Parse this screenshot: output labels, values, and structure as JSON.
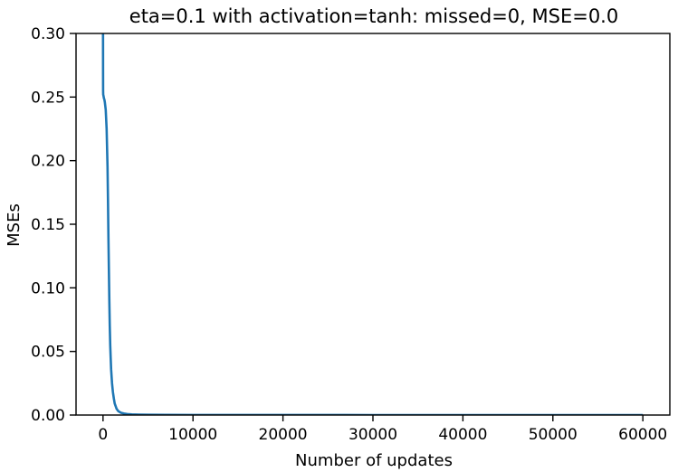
{
  "chart_data": {
    "type": "line",
    "title": "eta=0.1 with activation=tanh: missed=0, MSE=0.0",
    "xlabel": "Number of updates",
    "ylabel": "MSEs",
    "xlim": [
      -3000,
      63000
    ],
    "ylim": [
      0,
      0.3
    ],
    "x_ticks": [
      0,
      10000,
      20000,
      30000,
      40000,
      50000,
      60000
    ],
    "x_tick_labels": [
      "0",
      "10000",
      "20000",
      "30000",
      "40000",
      "50000",
      "60000"
    ],
    "y_ticks": [
      0.0,
      0.05,
      0.1,
      0.15,
      0.2,
      0.25,
      0.3
    ],
    "y_tick_labels": [
      "0.00",
      "0.05",
      "0.10",
      "0.15",
      "0.20",
      "0.25",
      "0.30"
    ],
    "grid": false,
    "legend": "none",
    "series": [
      {
        "color": "#1f77b4",
        "x": [
          0,
          5,
          10,
          20,
          50,
          100,
          150,
          200,
          300,
          400,
          500,
          550,
          600,
          650,
          700,
          750,
          800,
          850,
          900,
          1000,
          1100,
          1200,
          1300,
          1500,
          1700,
          2000,
          2300,
          2700,
          3200,
          4000,
          5000,
          7000,
          10000,
          20000,
          30000,
          40000,
          50000,
          60000
        ],
        "y": [
          0.3,
          0.27,
          0.255,
          0.252,
          0.251,
          0.249,
          0.248,
          0.246,
          0.24,
          0.225,
          0.195,
          0.17,
          0.14,
          0.115,
          0.09,
          0.07,
          0.055,
          0.045,
          0.036,
          0.025,
          0.018,
          0.013,
          0.009,
          0.005,
          0.003,
          0.0018,
          0.0012,
          0.0008,
          0.0005,
          0.0003,
          0.0002,
          0.0001,
          5e-05,
          2e-05,
          1e-05,
          1e-05,
          1e-05,
          1e-05
        ]
      }
    ]
  }
}
